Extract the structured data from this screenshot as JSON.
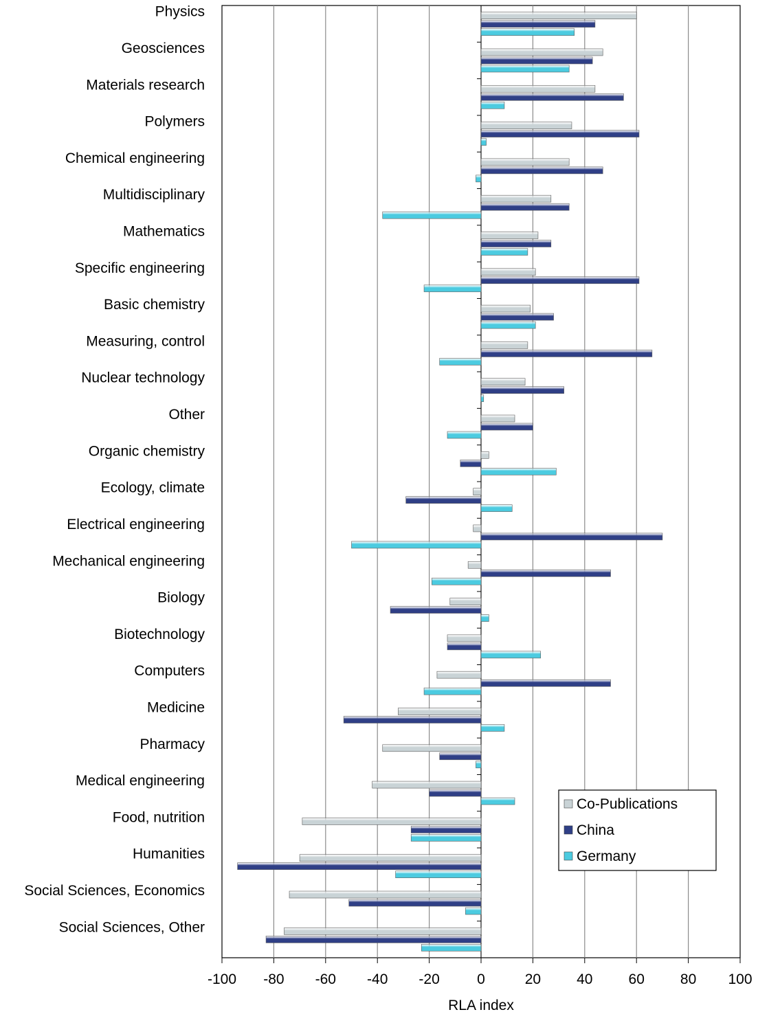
{
  "chart_data": {
    "type": "bar",
    "orientation": "horizontal",
    "title": "",
    "xlabel": "RLA index",
    "ylabel": "",
    "xlim": [
      -100,
      100
    ],
    "x_ticks": [
      "-100",
      "-80",
      "-60",
      "-40",
      "-20",
      "0",
      "20",
      "40",
      "60",
      "80",
      "100"
    ],
    "grid": "vertical",
    "legend_position": "bottom-right",
    "categories": [
      "Physics",
      "Geosciences",
      "Materials research",
      "Polymers",
      "Chemical engineering",
      "Multidisciplinary",
      "Mathematics",
      "Specific engineering",
      "Basic chemistry",
      "Measuring, control",
      "Nuclear technology",
      "Other",
      "Organic chemistry",
      "Ecology, climate",
      "Electrical engineering",
      "Mechanical engineering",
      "Biology",
      "Biotechnology",
      "Computers",
      "Medicine",
      "Pharmacy",
      "Medical engineering",
      "Food, nutrition",
      "Humanities",
      "Social Sciences, Economics",
      "Social Sciences, Other"
    ],
    "series": [
      {
        "name": "Co-Publications",
        "color": "#c9d3d6",
        "values": [
          60,
          47,
          44,
          35,
          34,
          27,
          22,
          21,
          19,
          18,
          17,
          13,
          3,
          -3,
          -3,
          -5,
          -12,
          -13,
          -17,
          -32,
          -38,
          -42,
          -69,
          -70,
          -74,
          -76
        ]
      },
      {
        "name": "China",
        "color": "#2f3f86",
        "values": [
          44,
          43,
          55,
          61,
          47,
          34,
          27,
          61,
          28,
          66,
          32,
          20,
          -8,
          -29,
          70,
          50,
          -35,
          -13,
          50,
          -53,
          -16,
          -20,
          -27,
          -94,
          -51,
          -83
        ]
      },
      {
        "name": "Germany",
        "color": "#4ccbe0",
        "values": [
          36,
          34,
          9,
          2,
          -2,
          -38,
          18,
          -22,
          21,
          -16,
          1,
          -13,
          29,
          12,
          -50,
          -19,
          3,
          23,
          -22,
          9,
          -2,
          13,
          -27,
          -33,
          -6,
          -23
        ]
      }
    ]
  }
}
